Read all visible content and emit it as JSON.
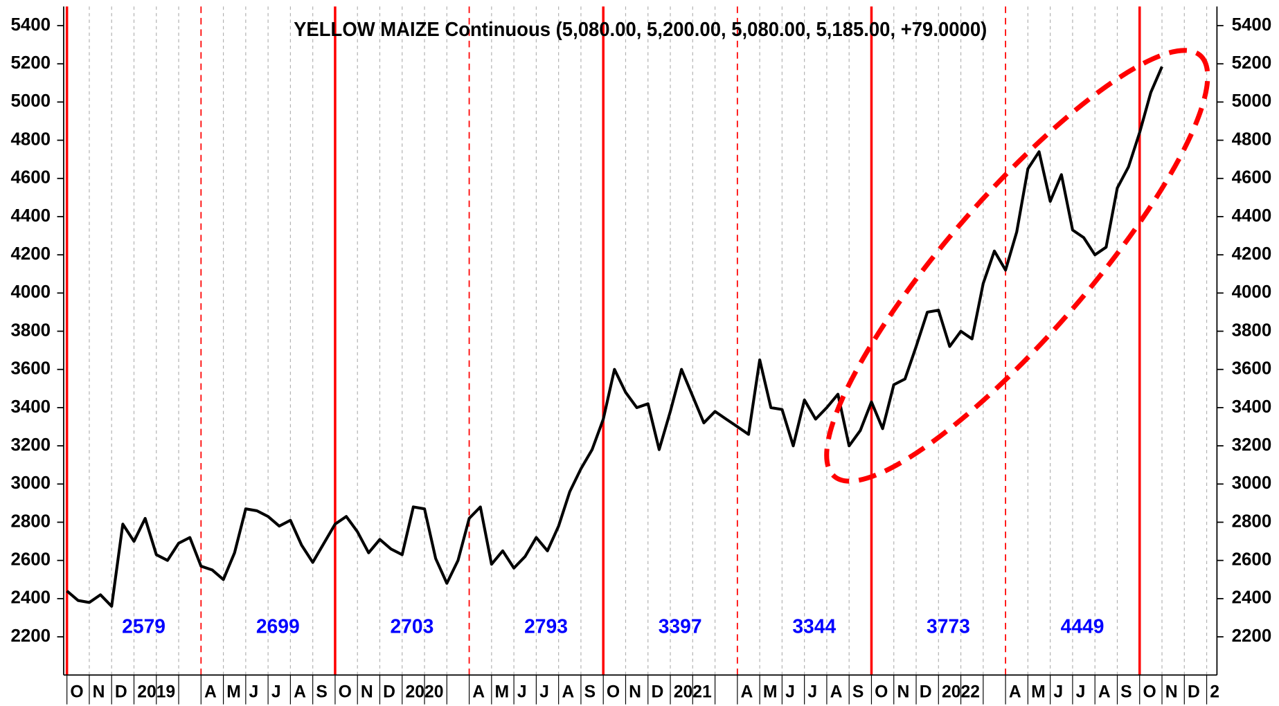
{
  "chart_data": {
    "type": "line",
    "title": "YELLOW MAIZE Continuous (5,080.00, 5,200.00, 5,080.00, 5,185.00, +79.0000)",
    "categories": [
      "O",
      null,
      "N",
      null,
      "D",
      null,
      "2019",
      null,
      null,
      null,
      null,
      null,
      "A",
      null,
      "M",
      null,
      "J",
      null,
      "J",
      null,
      "A",
      null,
      "S",
      null,
      "O",
      null,
      "N",
      null,
      "D",
      null,
      "2020",
      null,
      null,
      null,
      null,
      null,
      "A",
      null,
      "M",
      null,
      "J",
      null,
      "J",
      null,
      "A",
      null,
      "S",
      null,
      "O",
      null,
      "N",
      null,
      "D",
      null,
      "2021",
      null,
      null,
      null,
      null,
      null,
      "A",
      null,
      "M",
      null,
      "J",
      null,
      "J",
      null,
      "A",
      null,
      "S",
      null,
      "O",
      null,
      "N",
      null,
      "D",
      null,
      "2022",
      null,
      null,
      null,
      null,
      null,
      "A",
      null,
      "M",
      null,
      "J",
      null,
      "J",
      null,
      "A",
      null,
      "S",
      null,
      "O",
      null,
      "N",
      null,
      "D",
      null,
      "2",
      null
    ],
    "series": [
      {
        "color": "#000000",
        "values": [
          2440,
          2390,
          2380,
          2420,
          2360,
          2790,
          2700,
          2820,
          2630,
          2600,
          2690,
          2720,
          2570,
          2550,
          2500,
          2640,
          2870,
          2860,
          2830,
          2780,
          2810,
          2680,
          2590,
          2690,
          2790,
          2830,
          2750,
          2640,
          2710,
          2660,
          2630,
          2880,
          2870,
          2610,
          2480,
          2600,
          2820,
          2880,
          2580,
          2650,
          2560,
          2620,
          2720,
          2650,
          2780,
          2960,
          3080,
          3180,
          3340,
          3600,
          3480,
          3400,
          3420,
          3180,
          3380,
          3600,
          3460,
          3320,
          3380,
          3340,
          3300,
          3260,
          3650,
          3400,
          3390,
          3200,
          3440,
          3340,
          3400,
          3470,
          3200,
          3280,
          3430,
          3290,
          3520,
          3550,
          3720,
          3900,
          3910,
          3720,
          3800,
          3760,
          4050,
          4220,
          4120,
          4320,
          4650,
          4740,
          4480,
          4620,
          4330,
          4290,
          4200,
          4240,
          4550,
          4660,
          4840,
          5050,
          5185,
          null,
          null,
          null,
          null,
          null
        ]
      }
    ],
    "ylim": [
      2000,
      5500
    ],
    "yticks": [
      2200,
      2400,
      2600,
      2800,
      3000,
      3200,
      3400,
      3600,
      3800,
      4000,
      4200,
      4400,
      4600,
      4800,
      5000,
      5200,
      5400
    ],
    "annotations": [
      2579,
      2699,
      2703,
      2793,
      3397,
      3344,
      3773,
      4449
    ],
    "annotation_color": "#0000ff",
    "season_line_color": "#ff0000"
  }
}
